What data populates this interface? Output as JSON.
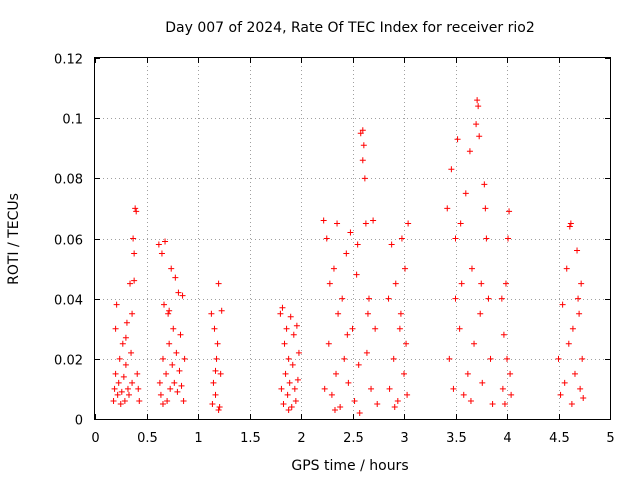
{
  "chart_data": {
    "type": "scatter",
    "title": "Day 007 of 2024, Rate Of TEC Index for receiver rio2",
    "xlabel": "GPS time / hours",
    "ylabel": "ROTI / TECUs",
    "xlim": [
      0,
      5
    ],
    "ylim": [
      0,
      0.12
    ],
    "xticks": [
      0,
      0.5,
      1,
      1.5,
      2,
      2.5,
      3,
      3.5,
      4,
      4.5,
      5
    ],
    "xtick_labels": [
      "0",
      "0.5",
      "1",
      "1.5",
      "2",
      "2.5",
      "3",
      "3.5",
      "4",
      "4.5",
      "5"
    ],
    "yticks": [
      0,
      0.02,
      0.04,
      0.06,
      0.08,
      0.1,
      0.12
    ],
    "ytick_labels": [
      "0",
      "0.02",
      "0.04",
      "0.06",
      "0.08",
      "0.1",
      "0.12"
    ],
    "grid": true,
    "marker": "plus",
    "color": "#ff0000",
    "series": [
      {
        "name": "ROTI",
        "points": [
          [
            0.18,
            0.006
          ],
          [
            0.19,
            0.01
          ],
          [
            0.2,
            0.015
          ],
          [
            0.2,
            0.03
          ],
          [
            0.21,
            0.038
          ],
          [
            0.22,
            0.008
          ],
          [
            0.23,
            0.012
          ],
          [
            0.24,
            0.02
          ],
          [
            0.25,
            0.005
          ],
          [
            0.26,
            0.009
          ],
          [
            0.27,
            0.025
          ],
          [
            0.28,
            0.014
          ],
          [
            0.29,
            0.006
          ],
          [
            0.3,
            0.018
          ],
          [
            0.31,
            0.032
          ],
          [
            0.32,
            0.01
          ],
          [
            0.33,
            0.008
          ],
          [
            0.34,
            0.045
          ],
          [
            0.35,
            0.022
          ],
          [
            0.36,
            0.012
          ],
          [
            0.37,
            0.06
          ],
          [
            0.38,
            0.055
          ],
          [
            0.39,
            0.07
          ],
          [
            0.4,
            0.069
          ],
          [
            0.41,
            0.015
          ],
          [
            0.42,
            0.01
          ],
          [
            0.43,
            0.006
          ],
          [
            0.38,
            0.046
          ],
          [
            0.36,
            0.035
          ],
          [
            0.3,
            0.027
          ],
          [
            0.62,
            0.058
          ],
          [
            0.63,
            0.012
          ],
          [
            0.64,
            0.008
          ],
          [
            0.65,
            0.055
          ],
          [
            0.66,
            0.02
          ],
          [
            0.67,
            0.038
          ],
          [
            0.68,
            0.059
          ],
          [
            0.69,
            0.015
          ],
          [
            0.7,
            0.006
          ],
          [
            0.71,
            0.035
          ],
          [
            0.72,
            0.025
          ],
          [
            0.73,
            0.01
          ],
          [
            0.74,
            0.05
          ],
          [
            0.75,
            0.018
          ],
          [
            0.76,
            0.03
          ],
          [
            0.77,
            0.012
          ],
          [
            0.78,
            0.047
          ],
          [
            0.79,
            0.022
          ],
          [
            0.8,
            0.009
          ],
          [
            0.81,
            0.042
          ],
          [
            0.82,
            0.016
          ],
          [
            0.83,
            0.028
          ],
          [
            0.84,
            0.011
          ],
          [
            0.85,
            0.041
          ],
          [
            0.86,
            0.006
          ],
          [
            0.87,
            0.02
          ],
          [
            0.72,
            0.036
          ],
          [
            0.66,
            0.005
          ],
          [
            1.13,
            0.035
          ],
          [
            1.14,
            0.005
          ],
          [
            1.15,
            0.012
          ],
          [
            1.16,
            0.03
          ],
          [
            1.17,
            0.008
          ],
          [
            1.18,
            0.02
          ],
          [
            1.19,
            0.025
          ],
          [
            1.2,
            0.045
          ],
          [
            1.21,
            0.004
          ],
          [
            1.22,
            0.015
          ],
          [
            1.23,
            0.036
          ],
          [
            1.17,
            0.016
          ],
          [
            1.2,
            0.003
          ],
          [
            1.8,
            0.035
          ],
          [
            1.81,
            0.01
          ],
          [
            1.82,
            0.037
          ],
          [
            1.83,
            0.005
          ],
          [
            1.84,
            0.025
          ],
          [
            1.85,
            0.015
          ],
          [
            1.86,
            0.03
          ],
          [
            1.87,
            0.008
          ],
          [
            1.88,
            0.02
          ],
          [
            1.89,
            0.012
          ],
          [
            1.9,
            0.034
          ],
          [
            1.91,
            0.004
          ],
          [
            1.92,
            0.018
          ],
          [
            1.93,
            0.028
          ],
          [
            1.94,
            0.01
          ],
          [
            1.95,
            0.006
          ],
          [
            1.96,
            0.031
          ],
          [
            1.97,
            0.013
          ],
          [
            1.98,
            0.022
          ],
          [
            1.88,
            0.003
          ],
          [
            2.22,
            0.066
          ],
          [
            2.23,
            0.01
          ],
          [
            2.25,
            0.06
          ],
          [
            2.27,
            0.025
          ],
          [
            2.28,
            0.045
          ],
          [
            2.3,
            0.008
          ],
          [
            2.32,
            0.05
          ],
          [
            2.34,
            0.015
          ],
          [
            2.36,
            0.035
          ],
          [
            2.38,
            0.004
          ],
          [
            2.4,
            0.04
          ],
          [
            2.42,
            0.02
          ],
          [
            2.44,
            0.055
          ],
          [
            2.46,
            0.012
          ],
          [
            2.48,
            0.062
          ],
          [
            2.5,
            0.03
          ],
          [
            2.52,
            0.006
          ],
          [
            2.54,
            0.048
          ],
          [
            2.56,
            0.018
          ],
          [
            2.58,
            0.095
          ],
          [
            2.6,
            0.096
          ],
          [
            2.61,
            0.091
          ],
          [
            2.6,
            0.086
          ],
          [
            2.62,
            0.08
          ],
          [
            2.63,
            0.065
          ],
          [
            2.64,
            0.022
          ],
          [
            2.66,
            0.04
          ],
          [
            2.68,
            0.01
          ],
          [
            2.7,
            0.066
          ],
          [
            2.72,
            0.03
          ],
          [
            2.74,
            0.005
          ],
          [
            2.35,
            0.065
          ],
          [
            2.45,
            0.028
          ],
          [
            2.55,
            0.058
          ],
          [
            2.65,
            0.035
          ],
          [
            2.33,
            0.003
          ],
          [
            2.57,
            0.002
          ],
          [
            2.85,
            0.04
          ],
          [
            2.86,
            0.01
          ],
          [
            2.88,
            0.058
          ],
          [
            2.9,
            0.02
          ],
          [
            2.92,
            0.045
          ],
          [
            2.94,
            0.006
          ],
          [
            2.96,
            0.03
          ],
          [
            2.98,
            0.06
          ],
          [
            3.0,
            0.015
          ],
          [
            3.01,
            0.05
          ],
          [
            3.02,
            0.025
          ],
          [
            3.03,
            0.008
          ],
          [
            3.04,
            0.065
          ],
          [
            2.97,
            0.035
          ],
          [
            2.91,
            0.004
          ],
          [
            3.42,
            0.07
          ],
          [
            3.44,
            0.02
          ],
          [
            3.46,
            0.083
          ],
          [
            3.48,
            0.01
          ],
          [
            3.5,
            0.06
          ],
          [
            3.52,
            0.093
          ],
          [
            3.54,
            0.03
          ],
          [
            3.56,
            0.045
          ],
          [
            3.58,
            0.008
          ],
          [
            3.6,
            0.075
          ],
          [
            3.62,
            0.015
          ],
          [
            3.64,
            0.089
          ],
          [
            3.66,
            0.05
          ],
          [
            3.68,
            0.025
          ],
          [
            3.7,
            0.098
          ],
          [
            3.71,
            0.106
          ],
          [
            3.72,
            0.104
          ],
          [
            3.73,
            0.094
          ],
          [
            3.74,
            0.035
          ],
          [
            3.76,
            0.012
          ],
          [
            3.78,
            0.078
          ],
          [
            3.79,
            0.07
          ],
          [
            3.8,
            0.06
          ],
          [
            3.82,
            0.04
          ],
          [
            3.84,
            0.02
          ],
          [
            3.86,
            0.005
          ],
          [
            3.5,
            0.04
          ],
          [
            3.55,
            0.065
          ],
          [
            3.65,
            0.006
          ],
          [
            3.75,
            0.045
          ],
          [
            3.95,
            0.04
          ],
          [
            3.96,
            0.01
          ],
          [
            3.97,
            0.028
          ],
          [
            3.98,
            0.005
          ],
          [
            3.99,
            0.045
          ],
          [
            4.0,
            0.02
          ],
          [
            4.01,
            0.06
          ],
          [
            4.02,
            0.069
          ],
          [
            4.03,
            0.015
          ],
          [
            4.04,
            0.008
          ],
          [
            4.5,
            0.02
          ],
          [
            4.52,
            0.008
          ],
          [
            4.54,
            0.038
          ],
          [
            4.56,
            0.012
          ],
          [
            4.58,
            0.05
          ],
          [
            4.6,
            0.025
          ],
          [
            4.61,
            0.064
          ],
          [
            4.62,
            0.065
          ],
          [
            4.63,
            0.005
          ],
          [
            4.64,
            0.03
          ],
          [
            4.66,
            0.015
          ],
          [
            4.68,
            0.056
          ],
          [
            4.7,
            0.035
          ],
          [
            4.71,
            0.01
          ],
          [
            4.72,
            0.045
          ],
          [
            4.73,
            0.02
          ],
          [
            4.74,
            0.007
          ],
          [
            4.69,
            0.04
          ]
        ]
      }
    ]
  }
}
